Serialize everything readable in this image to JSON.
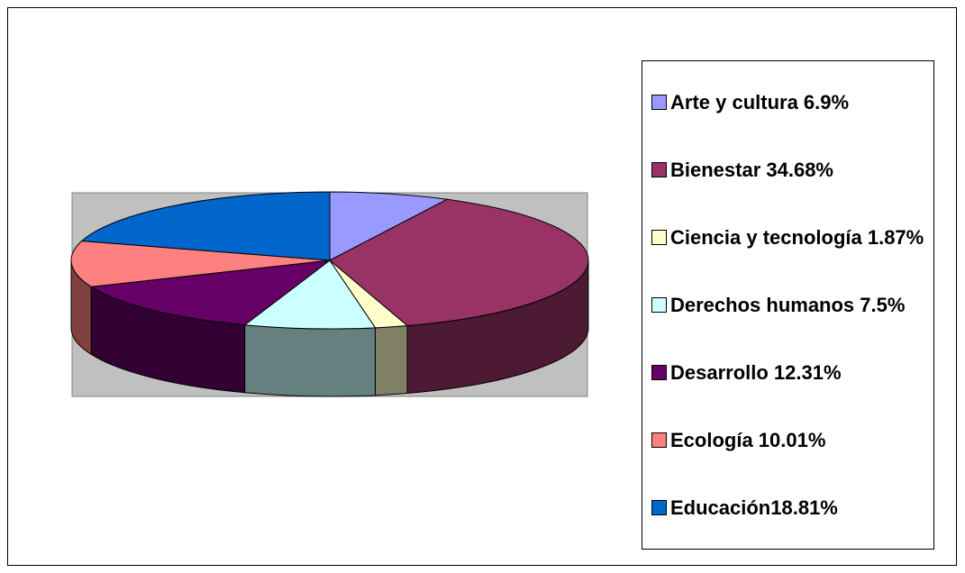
{
  "chart_data": {
    "type": "pie",
    "categories": [
      "Arte y cultura 6.9%",
      "Bienestar 34.68%",
      "Ciencia y tecnología 1.87%",
      "Derechos humanos 7.5%",
      "Desarrollo 12.31%",
      "Ecología 10.01%",
      "Educación18.81%"
    ],
    "values": [
      6.9,
      34.68,
      1.87,
      7.5,
      12.31,
      10.01,
      18.81
    ],
    "colors": [
      "#9999ff",
      "#993366",
      "#ffffcc",
      "#ccffff",
      "#660066",
      "#ff8080",
      "#0066cc"
    ],
    "legend": "right"
  }
}
